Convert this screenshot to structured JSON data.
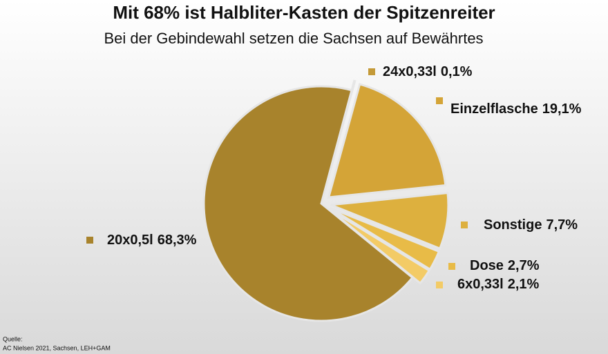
{
  "chart_data": {
    "type": "pie",
    "title": "Mit 68% ist Halbliter-Kasten der Spitzenreiter",
    "subtitle": "Bei der Gebindewahl setzen die Sachsen auf Bewährtes",
    "categories": [
      "24x0,33l",
      "Einzelflasche",
      "Sonstige",
      "Dose",
      "6x0,33l",
      "20x0,5l"
    ],
    "values": [
      0.1,
      19.1,
      7.7,
      2.7,
      2.1,
      68.3
    ],
    "value_labels": [
      "0,1%",
      "19,1%",
      "7,7%",
      "2,7%",
      "2,1%",
      "68,3%"
    ],
    "colors": [
      "#c49a38",
      "#d4a437",
      "#ddb03e",
      "#e8bb47",
      "#f3cb66",
      "#a8832c"
    ],
    "source": [
      "Quelle:",
      "AC Nielsen 2021, Sachsen, LEH+GAM"
    ]
  }
}
